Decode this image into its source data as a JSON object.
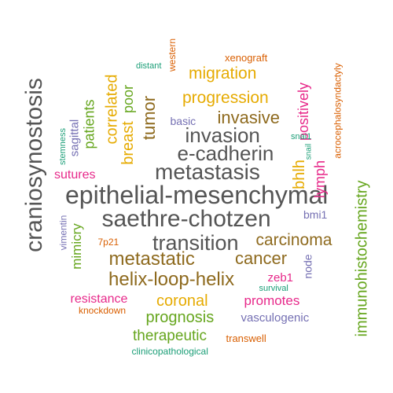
{
  "words": [
    {
      "text": "epithelial-mesenchymal",
      "color": "#555555"
    },
    {
      "text": "craniosynostosis",
      "color": "#555555"
    },
    {
      "text": "saethre-chotzen",
      "color": "#555555"
    },
    {
      "text": "metastasis",
      "color": "#555555"
    },
    {
      "text": "transition",
      "color": "#555555"
    },
    {
      "text": "e-cadherin",
      "color": "#555555"
    },
    {
      "text": "invasion",
      "color": "#555555"
    },
    {
      "text": "helix-loop-helix",
      "color": "#8e6a1e"
    },
    {
      "text": "metastatic",
      "color": "#8e6a1e"
    },
    {
      "text": "carcinoma",
      "color": "#8e6a1e"
    },
    {
      "text": "cancer",
      "color": "#8e6a1e"
    },
    {
      "text": "invasive",
      "color": "#8e6a1e"
    },
    {
      "text": "tumor",
      "color": "#8e6a1e"
    },
    {
      "text": "immunohistochemistry",
      "color": "#66a61e"
    },
    {
      "text": "progression",
      "color": "#e6ab02"
    },
    {
      "text": "migration",
      "color": "#e6ab02"
    },
    {
      "text": "correlated",
      "color": "#e6ab02"
    },
    {
      "text": "breast",
      "color": "#e6ab02"
    },
    {
      "text": "bhlh",
      "color": "#e6ab02"
    },
    {
      "text": "coronal",
      "color": "#e6ab02"
    },
    {
      "text": "poor",
      "color": "#66a61e"
    },
    {
      "text": "patients",
      "color": "#66a61e"
    },
    {
      "text": "mimicry",
      "color": "#66a61e"
    },
    {
      "text": "prognosis",
      "color": "#66a61e"
    },
    {
      "text": "therapeutic",
      "color": "#66a61e"
    },
    {
      "text": "positively",
      "color": "#e7298a"
    },
    {
      "text": "lymph",
      "color": "#e7298a"
    },
    {
      "text": "sutures",
      "color": "#e7298a"
    },
    {
      "text": "resistance",
      "color": "#e7298a"
    },
    {
      "text": "promotes",
      "color": "#e7298a"
    },
    {
      "text": "zeb1",
      "color": "#e7298a"
    },
    {
      "text": "sagittal",
      "color": "#7570b3"
    },
    {
      "text": "basic",
      "color": "#7570b3"
    },
    {
      "text": "bmi1",
      "color": "#7570b3"
    },
    {
      "text": "node",
      "color": "#7570b3"
    },
    {
      "text": "vasculogenic",
      "color": "#7570b3"
    },
    {
      "text": "vimentin",
      "color": "#7570b3"
    },
    {
      "text": "xenograft",
      "color": "#d95f02"
    },
    {
      "text": "western",
      "color": "#d95f02"
    },
    {
      "text": "acrocephalosyndactyly",
      "color": "#d95f02"
    },
    {
      "text": "7p21",
      "color": "#d95f02"
    },
    {
      "text": "knockdown",
      "color": "#d95f02"
    },
    {
      "text": "transwell",
      "color": "#d95f02"
    },
    {
      "text": "distant",
      "color": "#1b9e77"
    },
    {
      "text": "stemness",
      "color": "#1b9e77"
    },
    {
      "text": "snai1",
      "color": "#1b9e77"
    },
    {
      "text": "snail",
      "color": "#1b9e77"
    },
    {
      "text": "survival",
      "color": "#1b9e77"
    },
    {
      "text": "clinicopathological",
      "color": "#1b9e77"
    }
  ]
}
